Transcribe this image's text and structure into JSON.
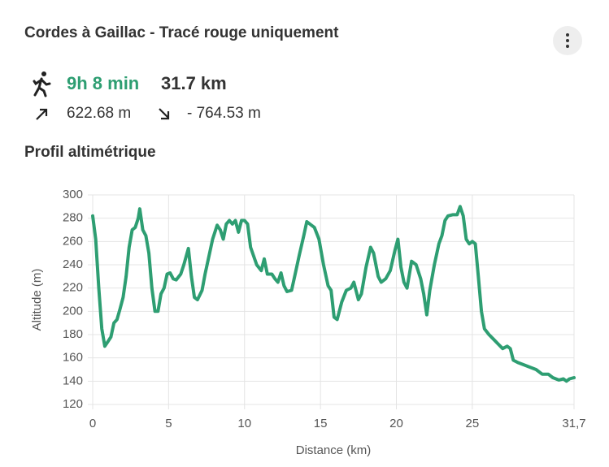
{
  "header": {
    "title": "Cordes à Gaillac - Tracé rouge uniquement"
  },
  "stats": {
    "duration": "9h 8 min",
    "distance": "31.7 km",
    "ascent": "622.68 m",
    "descent": "- 764.53 m"
  },
  "chart_data": {
    "type": "line",
    "title": "Profil altimétrique",
    "x_label": "Distance (km)",
    "y_label": "Altitude (m)",
    "xlim": [
      0,
      31.7
    ],
    "xticks": [
      0,
      5,
      10,
      15,
      20,
      25,
      {
        "value": 31.7,
        "label": "31,7"
      }
    ],
    "ylim": [
      120,
      300
    ],
    "yticks": [
      120,
      140,
      160,
      180,
      200,
      220,
      240,
      260,
      280,
      300
    ],
    "grid": true,
    "x": [
      0,
      0.2,
      0.4,
      0.6,
      0.8,
      1.0,
      1.2,
      1.4,
      1.6,
      1.8,
      2.0,
      2.2,
      2.4,
      2.6,
      2.8,
      3.0,
      3.1,
      3.3,
      3.5,
      3.7,
      3.9,
      4.1,
      4.3,
      4.5,
      4.7,
      4.9,
      5.1,
      5.3,
      5.5,
      5.8,
      6.0,
      6.3,
      6.5,
      6.7,
      6.9,
      7.2,
      7.4,
      7.7,
      7.9,
      8.2,
      8.4,
      8.6,
      8.8,
      9.0,
      9.2,
      9.4,
      9.6,
      9.8,
      10.0,
      10.2,
      10.4,
      10.8,
      11.1,
      11.3,
      11.5,
      11.8,
      12.0,
      12.2,
      12.4,
      12.6,
      12.8,
      13.1,
      13.3,
      13.6,
      13.9,
      14.1,
      14.3,
      14.6,
      14.9,
      15.2,
      15.5,
      15.7,
      15.9,
      16.1,
      16.4,
      16.7,
      17.0,
      17.2,
      17.5,
      17.7,
      18.0,
      18.3,
      18.5,
      18.8,
      19.0,
      19.3,
      19.6,
      19.9,
      20.1,
      20.3,
      20.5,
      20.7,
      21.0,
      21.3,
      21.6,
      21.8,
      22.0,
      22.2,
      22.5,
      22.8,
      23.0,
      23.2,
      23.4,
      23.7,
      24.0,
      24.2,
      24.4,
      24.6,
      24.8,
      25.0,
      25.2,
      25.4,
      25.6,
      25.8,
      26.1,
      26.4,
      26.7,
      27.0,
      27.3,
      27.5,
      27.7,
      28.0,
      28.4,
      28.8,
      29.2,
      29.6,
      30.0,
      30.3,
      30.7,
      31.0,
      31.2,
      31.4,
      31.7
    ],
    "series": [
      {
        "color": "#2e9e72",
        "values": [
          282,
          262,
          220,
          185,
          170,
          174,
          178,
          190,
          193,
          202,
          212,
          230,
          255,
          270,
          272,
          280,
          288,
          270,
          265,
          250,
          220,
          200,
          200,
          215,
          220,
          232,
          233,
          228,
          227,
          232,
          240,
          254,
          230,
          212,
          210,
          218,
          232,
          250,
          262,
          274,
          270,
          262,
          275,
          278,
          275,
          278,
          268,
          278,
          278,
          275,
          255,
          240,
          235,
          245,
          232,
          232,
          228,
          225,
          233,
          222,
          217,
          218,
          230,
          248,
          265,
          277,
          275,
          272,
          262,
          240,
          222,
          218,
          195,
          193,
          208,
          218,
          220,
          225,
          210,
          215,
          238,
          255,
          250,
          230,
          225,
          228,
          235,
          252,
          262,
          238,
          225,
          220,
          243,
          240,
          228,
          215,
          197,
          218,
          240,
          258,
          265,
          278,
          282,
          283,
          283,
          290,
          282,
          262,
          258,
          260,
          258,
          230,
          200,
          185,
          180,
          176,
          172,
          168,
          170,
          168,
          158,
          156,
          154,
          152,
          150,
          146,
          146,
          143,
          141,
          142,
          140,
          142,
          143
        ]
      }
    ]
  }
}
